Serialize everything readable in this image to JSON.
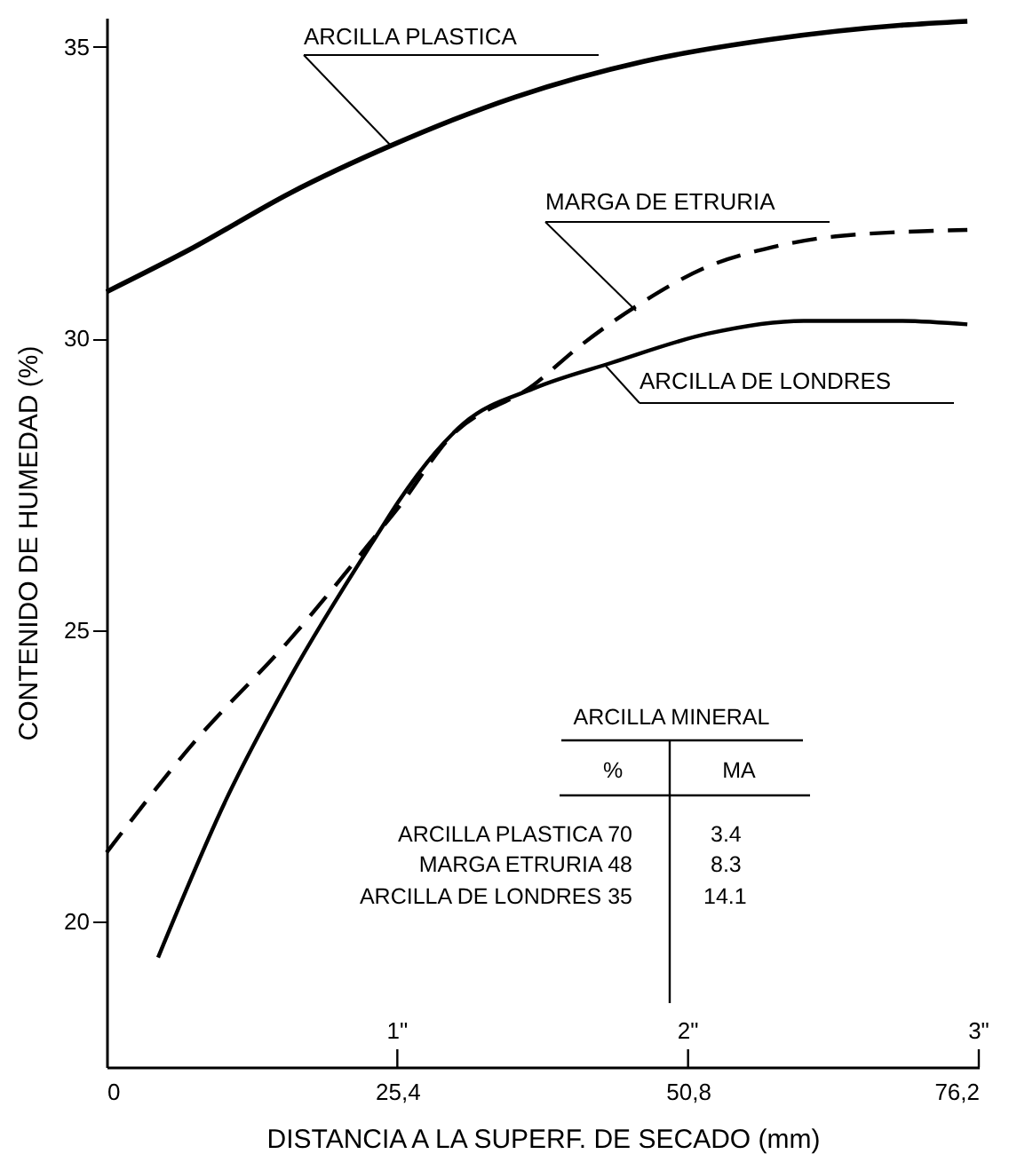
{
  "chart_data": {
    "type": "line",
    "xlabel": "DISTANCIA A LA SUPERF. DE SECADO (mm)",
    "ylabel": "CONTENIDO DE HUMEDAD  (%)",
    "xlim": [
      0,
      76.2
    ],
    "xticks": [
      0,
      {
        "value": 25.4,
        "label": "25,4"
      },
      {
        "value": 50.8,
        "label": "50,8"
      },
      {
        "value": 76.2,
        "label": "76,2"
      }
    ],
    "x2lim": [
      0,
      3
    ],
    "x2ticks": [
      {
        "value": 1,
        "label": "1\""
      },
      {
        "value": 2,
        "label": "2\""
      },
      {
        "value": 3,
        "label": "3\""
      }
    ],
    "ylim": [
      17.5,
      35.5
    ],
    "yticks": [
      20,
      25,
      30,
      35
    ],
    "marker": "none",
    "series": [
      {
        "name": "ARCILLA PLASTICA",
        "color": "#000000",
        "line_style": "solid",
        "x": [
          0,
          7.6,
          16.0,
          25.0,
          35.7,
          46.9,
          58.1,
          69.3,
          75.2
        ],
        "values": [
          30.8,
          31.56,
          32.49,
          33.32,
          34.14,
          34.75,
          35.13,
          35.37,
          35.44
        ]
      },
      {
        "name": "MARGA DE ETRURIA",
        "color": "#000000",
        "line_style": "dashed",
        "x": [
          0,
          7.6,
          16.0,
          23.9,
          25.5,
          30.0,
          37.3,
          41.3,
          46.9,
          52.5,
          58.1,
          63.7,
          75.2
        ],
        "values": [
          21.18,
          23.06,
          24.83,
          26.71,
          27.1,
          28.3,
          29.2,
          29.86,
          30.63,
          31.23,
          31.56,
          31.75,
          31.86
        ]
      },
      {
        "name": "ARCILLA DE LONDRES",
        "color": "#000000",
        "line_style": "solid",
        "x": [
          4.5,
          10.4,
          16.0,
          23.9,
          25.5,
          31.2,
          37.3,
          44.1,
          52.5,
          60.9,
          69.3,
          75.2
        ],
        "values": [
          19.38,
          22.07,
          24.17,
          26.71,
          27.2,
          28.54,
          29.14,
          29.58,
          30.08,
          30.3,
          30.3,
          30.24
        ]
      }
    ],
    "annotations": [
      "ARCILLA  MINERAL",
      "%",
      "MA",
      "ARCILLA PLASTICA 70",
      "3.4",
      "MARGA  ETRURIA 48",
      "8.3",
      "ARCILLA DE LONDRES 35",
      "14.1"
    ]
  }
}
